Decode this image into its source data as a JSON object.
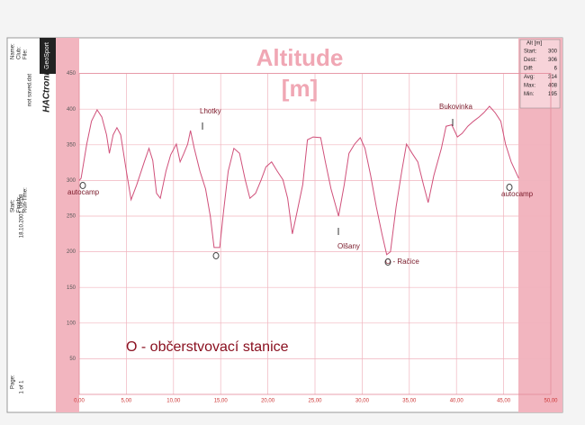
{
  "chart_data": {
    "type": "line",
    "title": "Altitude",
    "subtitle": "[m]",
    "x": [
      0,
      0.2,
      0.8,
      1.3,
      1.9,
      2.4,
      2.9,
      3.2,
      3.6,
      4.0,
      4.4,
      5.0,
      5.5,
      6.1,
      6.9,
      7.4,
      7.8,
      8.2,
      8.6,
      9.2,
      9.7,
      10.3,
      10.7,
      11.1,
      11.5,
      11.8,
      12.2,
      12.8,
      13.4,
      13.9,
      14.3,
      14.9,
      15.3,
      15.8,
      16.4,
      17.0,
      17.6,
      18.1,
      18.7,
      19.3,
      19.8,
      20.4,
      21.0,
      21.6,
      22.1,
      22.6,
      23.1,
      23.7,
      24.2,
      24.8,
      25.6,
      26.1,
      26.7,
      27.5,
      28.1,
      28.6,
      29.2,
      29.8,
      30.3,
      30.9,
      31.5,
      32.1,
      32.6,
      33.0,
      33.6,
      34.2,
      34.7,
      35.3,
      35.9,
      36.5,
      37.0,
      37.6,
      38.4,
      38.9,
      39.5,
      40.1,
      40.6,
      41.2,
      41.8,
      42.4,
      42.9,
      43.5,
      44.1,
      44.7,
      45.2,
      45.8,
      46.6
    ],
    "series": [
      {
        "color": "#d0507a",
        "values": [
          300,
          303,
          351,
          383,
          399,
          389,
          364,
          338,
          364,
          374,
          364,
          313,
          273,
          294,
          326,
          345,
          328,
          282,
          275,
          313,
          336,
          351,
          326,
          338,
          351,
          370,
          345,
          313,
          288,
          250,
          206,
          206,
          256,
          313,
          345,
          338,
          301,
          275,
          282,
          301,
          319,
          326,
          313,
          301,
          275,
          225,
          256,
          294,
          357,
          361,
          360,
          326,
          288,
          250,
          294,
          338,
          351,
          360,
          345,
          307,
          263,
          225,
          196,
          200,
          263,
          313,
          351,
          338,
          326,
          294,
          269,
          307,
          345,
          376,
          378,
          361,
          366,
          376,
          383,
          389,
          395,
          404,
          395,
          383,
          351,
          326,
          303
        ]
      }
    ],
    "xlim": [
      0,
      50
    ],
    "ylim": [
      0,
      450
    ],
    "xticks": [
      {
        "value": 0,
        "label": "0,00"
      },
      {
        "value": 5,
        "label": "5,00"
      },
      {
        "value": 10,
        "label": "10,00"
      },
      {
        "value": 15,
        "label": "15,00"
      },
      {
        "value": 20,
        "label": "20,00"
      },
      {
        "value": 25,
        "label": "25,00"
      },
      {
        "value": 30,
        "label": "30,00"
      },
      {
        "value": 35,
        "label": "35,00"
      },
      {
        "value": 40,
        "label": "40,00"
      },
      {
        "value": 45,
        "label": "45,00"
      },
      {
        "value": 50,
        "label": "50,00"
      }
    ],
    "yticks": [
      50,
      100,
      150,
      200,
      250,
      300,
      350,
      400,
      450
    ],
    "grid": true,
    "annotations": [
      "Lhotky",
      "Olšany",
      "Bukovinka",
      "autocamp",
      "autocamp",
      "O - Račice",
      "O - občerstvovací stanice"
    ]
  },
  "sheet": {
    "logo": "GeoSport",
    "program": "HACtronic",
    "file": "not saved.dat",
    "date": "18.10.2001, 09:08",
    "fields": [
      "Name:",
      "Club:",
      "File:",
      "Start:",
      "Finish:",
      "Run-Time:",
      "Page:"
    ],
    "page": "1 of 1",
    "stats_title": "Alt [m]",
    "stats": [
      [
        "Start:",
        300
      ],
      [
        "Dest:",
        306
      ],
      [
        "Diff:",
        6
      ],
      [
        "Avg:",
        314
      ],
      [
        "Max:",
        408
      ],
      [
        "Min:",
        195
      ]
    ]
  }
}
